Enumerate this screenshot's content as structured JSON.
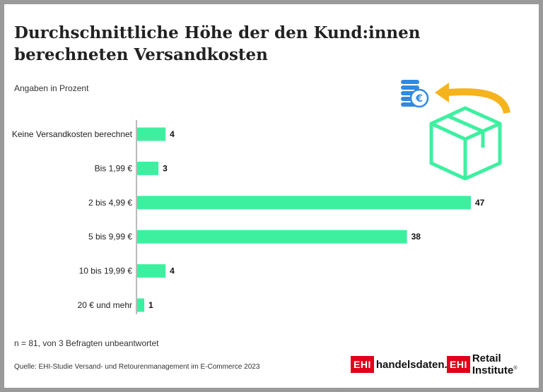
{
  "title": "Durchschnittliche Höhe der den Kund:innen berechneten Versandkosten",
  "subtitle": "Angaben in Prozent",
  "note": "n = 81, von 3 Befragten unbeantwortet",
  "source": "Quelle: EHI-Studie Versand- und Retourenmanagement im E-Commerce 2023",
  "logos": {
    "mark": "EHI",
    "handelsdaten": "handelsdaten.de",
    "retail": "Retail Institute",
    "registered": "®"
  },
  "colors": {
    "bar": "#3df0a0",
    "illustration_box": "#3df0a0",
    "coin": "#2f8ae0",
    "arrow": "#f5b41e",
    "brand_red": "#e2001a"
  },
  "icons": [
    "coin-stack-icon",
    "euro-icon",
    "curved-arrow-icon",
    "package-box-icon"
  ],
  "chart_data": {
    "type": "bar",
    "orientation": "horizontal",
    "categories": [
      "Keine Versandkosten berechnet",
      "Bis 1,99 €",
      "2 bis 4,99 €",
      "5 bis 9,99 €",
      "10 bis 19,99 €",
      "20 € und mehr"
    ],
    "values": [
      4,
      3,
      47,
      38,
      4,
      1
    ],
    "data_labels": [
      "4",
      "3",
      "47",
      "38",
      "4",
      "1"
    ],
    "title": "Durchschnittliche Höhe der den Kund:innen berechneten Versandkosten",
    "xlabel": "",
    "ylabel": "",
    "xlim": [
      0,
      47
    ],
    "grid": false,
    "legend": "none"
  }
}
